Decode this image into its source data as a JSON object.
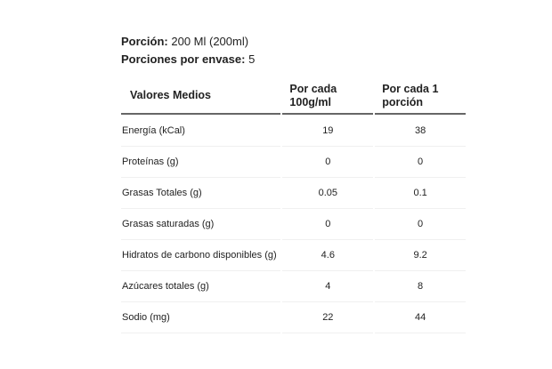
{
  "portion": {
    "label": "Porción:",
    "value": "200 Ml (200ml)"
  },
  "servings": {
    "label": "Porciones por envase:",
    "value": "5"
  },
  "table": {
    "headers": [
      "Valores Medios",
      "Por cada 100g/ml",
      "Por cada 1 porción"
    ],
    "rows": [
      {
        "name": "Energía (kCal)",
        "per100": "19",
        "perPortion": "38"
      },
      {
        "name": "Proteínas (g)",
        "per100": "0",
        "perPortion": "0"
      },
      {
        "name": "Grasas Totales (g)",
        "per100": "0.05",
        "perPortion": "0.1"
      },
      {
        "name": "Grasas saturadas (g)",
        "per100": "0",
        "perPortion": "0"
      },
      {
        "name": "Hidratos de carbono disponibles (g)",
        "per100": "4.6",
        "perPortion": "9.2"
      },
      {
        "name": "Azúcares totales (g)",
        "per100": "4",
        "perPortion": "8"
      },
      {
        "name": "Sodio (mg)",
        "per100": "22",
        "perPortion": "44"
      }
    ]
  }
}
